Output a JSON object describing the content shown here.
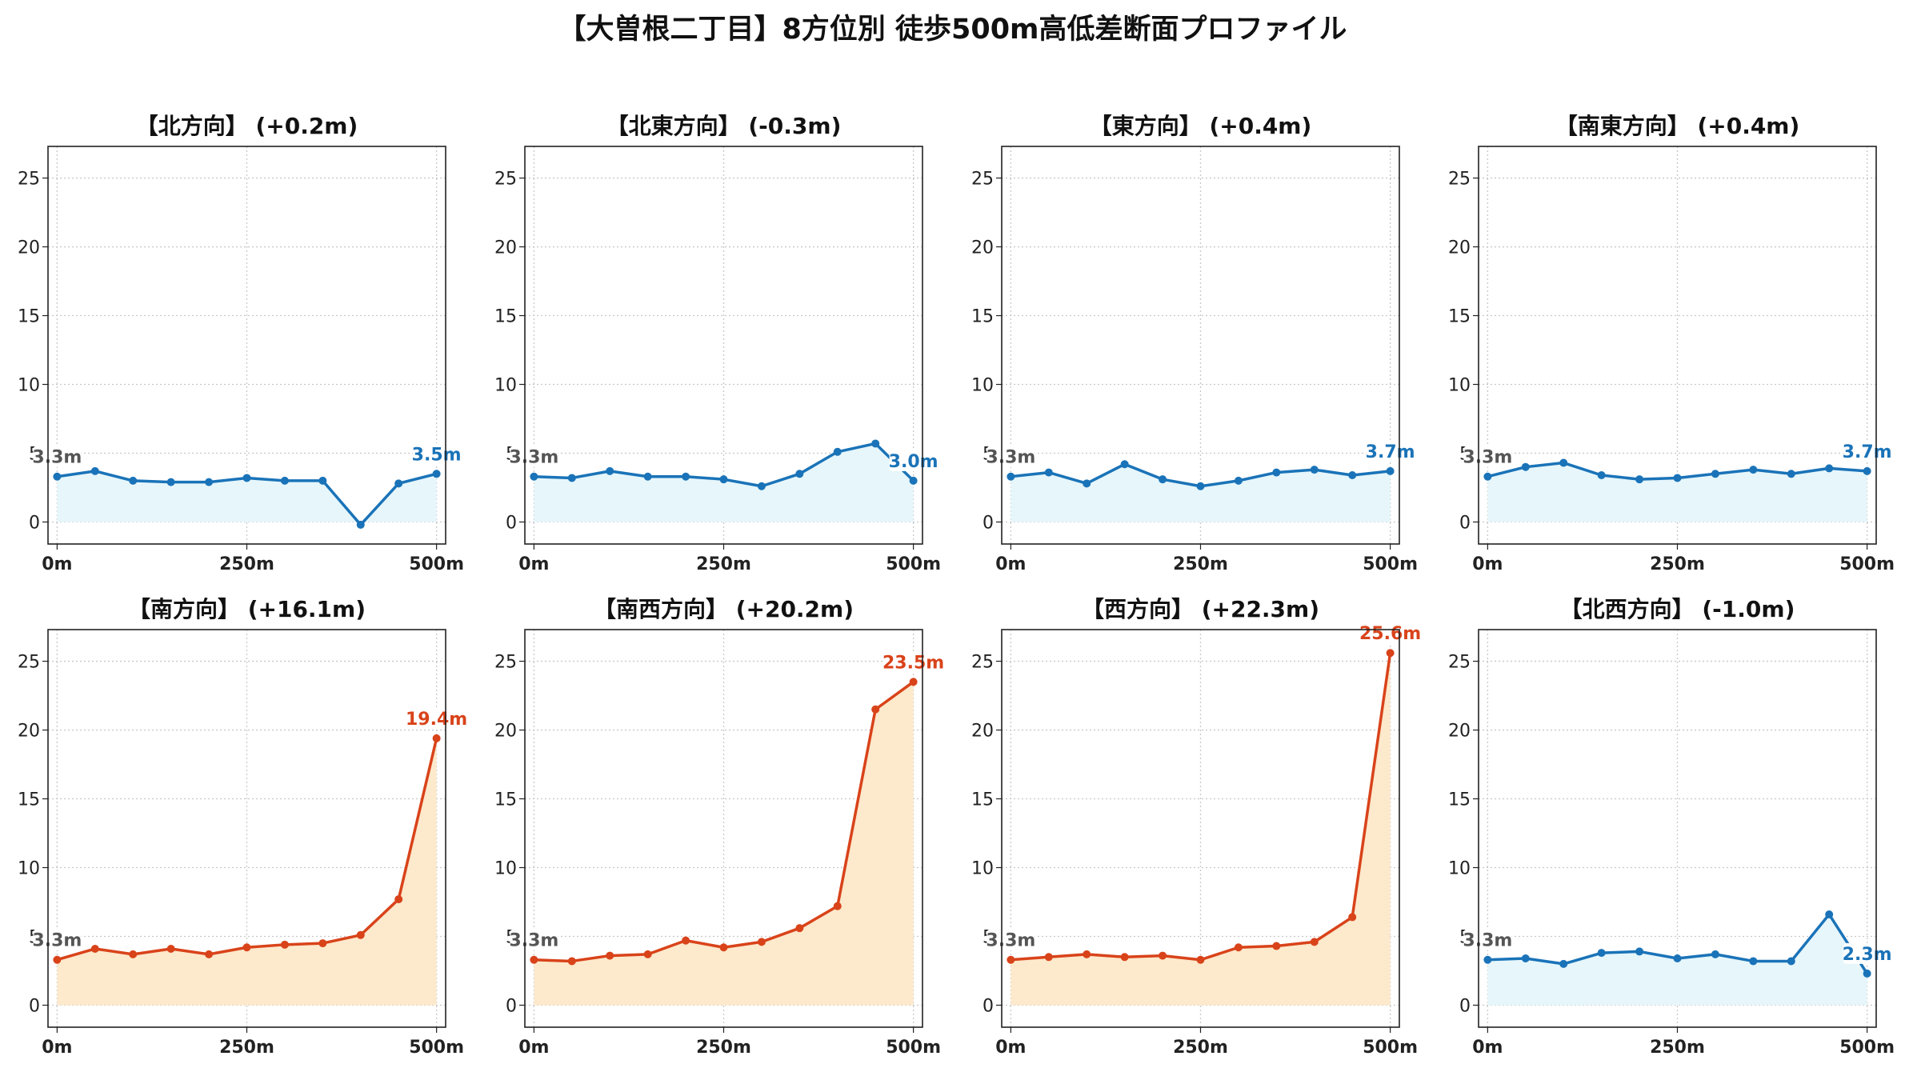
{
  "title": "【大曽根二丁目】8方位別 徒歩500m高低差断面プロファイル",
  "colors": {
    "flat_line": "#1a73b8",
    "flat_fill": "#e6f6fb",
    "up_line": "#d9431a",
    "up_fill": "#fde9cc",
    "grid": "#c8c8c8"
  },
  "chart_data": [
    {
      "type": "area",
      "title": "【北方向】 (+0.2m)",
      "trend": "flat",
      "x": [
        0,
        50,
        100,
        150,
        200,
        250,
        300,
        350,
        400,
        450,
        500
      ],
      "y": [
        3.3,
        3.7,
        3.0,
        2.9,
        2.9,
        3.2,
        3.0,
        3.0,
        -0.2,
        2.8,
        3.5
      ],
      "start_label": "3.3m",
      "end_label": "3.5m",
      "xticks": [
        "0m",
        "250m",
        "500m"
      ],
      "yticks": [
        "0",
        "5",
        "10",
        "15",
        "20",
        "25"
      ],
      "xlim": [
        -12,
        512
      ],
      "ylim": [
        -1.6,
        27.3
      ],
      "grid": true
    },
    {
      "type": "area",
      "title": "【北東方向】 (-0.3m)",
      "trend": "flat",
      "x": [
        0,
        50,
        100,
        150,
        200,
        250,
        300,
        350,
        400,
        450,
        500
      ],
      "y": [
        3.3,
        3.2,
        3.7,
        3.3,
        3.3,
        3.1,
        2.6,
        3.5,
        5.1,
        5.7,
        3.0
      ],
      "start_label": "3.3m",
      "end_label": "3.0m",
      "xticks": [
        "0m",
        "250m",
        "500m"
      ],
      "yticks": [
        "0",
        "5",
        "10",
        "15",
        "20",
        "25"
      ],
      "xlim": [
        -12,
        512
      ],
      "ylim": [
        -1.6,
        27.3
      ],
      "grid": true
    },
    {
      "type": "area",
      "title": "【東方向】 (+0.4m)",
      "trend": "flat",
      "x": [
        0,
        50,
        100,
        150,
        200,
        250,
        300,
        350,
        400,
        450,
        500
      ],
      "y": [
        3.3,
        3.6,
        2.8,
        4.2,
        3.1,
        2.6,
        3.0,
        3.6,
        3.8,
        3.4,
        3.7
      ],
      "start_label": "3.3m",
      "end_label": "3.7m",
      "xticks": [
        "0m",
        "250m",
        "500m"
      ],
      "yticks": [
        "0",
        "5",
        "10",
        "15",
        "20",
        "25"
      ],
      "xlim": [
        -12,
        512
      ],
      "ylim": [
        -1.6,
        27.3
      ],
      "grid": true
    },
    {
      "type": "area",
      "title": "【南東方向】 (+0.4m)",
      "trend": "flat",
      "x": [
        0,
        50,
        100,
        150,
        200,
        250,
        300,
        350,
        400,
        450,
        500
      ],
      "y": [
        3.3,
        4.0,
        4.3,
        3.4,
        3.1,
        3.2,
        3.5,
        3.8,
        3.5,
        3.9,
        3.7
      ],
      "start_label": "3.3m",
      "end_label": "3.7m",
      "xticks": [
        "0m",
        "250m",
        "500m"
      ],
      "yticks": [
        "0",
        "5",
        "10",
        "15",
        "20",
        "25"
      ],
      "xlim": [
        -12,
        512
      ],
      "ylim": [
        -1.6,
        27.3
      ],
      "grid": true
    },
    {
      "type": "area",
      "title": "【南方向】 (+16.1m)",
      "trend": "up",
      "x": [
        0,
        50,
        100,
        150,
        200,
        250,
        300,
        350,
        400,
        450,
        500
      ],
      "y": [
        3.3,
        4.1,
        3.7,
        4.1,
        3.7,
        4.2,
        4.4,
        4.5,
        5.1,
        7.7,
        19.4
      ],
      "start_label": "3.3m",
      "end_label": "19.4m",
      "xticks": [
        "0m",
        "250m",
        "500m"
      ],
      "yticks": [
        "0",
        "5",
        "10",
        "15",
        "20",
        "25"
      ],
      "xlim": [
        -12,
        512
      ],
      "ylim": [
        -1.6,
        27.3
      ],
      "grid": true
    },
    {
      "type": "area",
      "title": "【南西方向】 (+20.2m)",
      "trend": "up",
      "x": [
        0,
        50,
        100,
        150,
        200,
        250,
        300,
        350,
        400,
        450,
        500
      ],
      "y": [
        3.3,
        3.2,
        3.6,
        3.7,
        4.7,
        4.2,
        4.6,
        5.6,
        7.2,
        21.5,
        23.5
      ],
      "start_label": "3.3m",
      "end_label": "23.5m",
      "xticks": [
        "0m",
        "250m",
        "500m"
      ],
      "yticks": [
        "0",
        "5",
        "10",
        "15",
        "20",
        "25"
      ],
      "xlim": [
        -12,
        512
      ],
      "ylim": [
        -1.6,
        27.3
      ],
      "grid": true
    },
    {
      "type": "area",
      "title": "【西方向】 (+22.3m)",
      "trend": "up",
      "x": [
        0,
        50,
        100,
        150,
        200,
        250,
        300,
        350,
        400,
        450,
        500
      ],
      "y": [
        3.3,
        3.5,
        3.7,
        3.5,
        3.6,
        3.3,
        4.2,
        4.3,
        4.6,
        6.4,
        25.6
      ],
      "start_label": "3.3m",
      "end_label": "25.6m",
      "xticks": [
        "0m",
        "250m",
        "500m"
      ],
      "yticks": [
        "0",
        "5",
        "10",
        "15",
        "20",
        "25"
      ],
      "xlim": [
        -12,
        512
      ],
      "ylim": [
        -1.6,
        27.3
      ],
      "grid": true
    },
    {
      "type": "area",
      "title": "【北西方向】 (-1.0m)",
      "trend": "flat",
      "x": [
        0,
        50,
        100,
        150,
        200,
        250,
        300,
        350,
        400,
        450,
        500
      ],
      "y": [
        3.3,
        3.4,
        3.0,
        3.8,
        3.9,
        3.4,
        3.7,
        3.2,
        3.2,
        6.6,
        2.3
      ],
      "start_label": "3.3m",
      "end_label": "2.3m",
      "xticks": [
        "0m",
        "250m",
        "500m"
      ],
      "yticks": [
        "0",
        "5",
        "10",
        "15",
        "20",
        "25"
      ],
      "xlim": [
        -12,
        512
      ],
      "ylim": [
        -1.6,
        27.3
      ],
      "grid": true
    }
  ]
}
